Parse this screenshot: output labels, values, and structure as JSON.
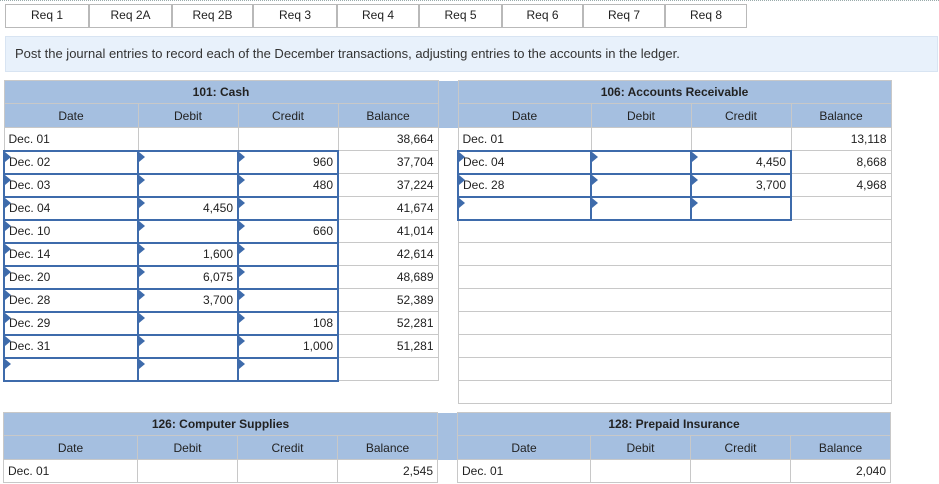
{
  "tabs": [
    "Req 1",
    "Req 2A",
    "Req 2B",
    "Req 3",
    "Req 4",
    "Req 5",
    "Req 6",
    "Req 7",
    "Req 8"
  ],
  "instruction": "Post the journal entries to record each of the December transactions, adjusting entries to the accounts in the ledger.",
  "headers": {
    "date": "Date",
    "debit": "Debit",
    "credit": "Credit",
    "balance": "Balance"
  },
  "cash": {
    "title": "101: Cash",
    "rows": [
      {
        "date": "Dec. 01",
        "debit": "",
        "credit": "",
        "balance": "38,664"
      },
      {
        "date": "Dec. 02",
        "debit": "",
        "credit": "960",
        "balance": "37,704"
      },
      {
        "date": "Dec. 03",
        "debit": "",
        "credit": "480",
        "balance": "37,224"
      },
      {
        "date": "Dec. 04",
        "debit": "4,450",
        "credit": "",
        "balance": "41,674"
      },
      {
        "date": "Dec. 10",
        "debit": "",
        "credit": "660",
        "balance": "41,014"
      },
      {
        "date": "Dec. 14",
        "debit": "1,600",
        "credit": "",
        "balance": "42,614"
      },
      {
        "date": "Dec. 20",
        "debit": "6,075",
        "credit": "",
        "balance": "48,689"
      },
      {
        "date": "Dec. 28",
        "debit": "3,700",
        "credit": "",
        "balance": "52,389"
      },
      {
        "date": "Dec. 29",
        "debit": "",
        "credit": "108",
        "balance": "52,281"
      },
      {
        "date": "Dec. 31",
        "debit": "",
        "credit": "1,000",
        "balance": "51,281"
      },
      {
        "date": "",
        "debit": "",
        "credit": "",
        "balance": ""
      }
    ]
  },
  "ar": {
    "title": "106: Accounts Receivable",
    "rows": [
      {
        "date": "Dec. 01",
        "debit": "",
        "credit": "",
        "balance": "13,118"
      },
      {
        "date": "Dec. 04",
        "debit": "",
        "credit": "4,450",
        "balance": "8,668"
      },
      {
        "date": "Dec. 28",
        "debit": "",
        "credit": "3,700",
        "balance": "4,968"
      },
      {
        "date": "",
        "debit": "",
        "credit": "",
        "balance": ""
      }
    ]
  },
  "supplies": {
    "title": "126: Computer Supplies",
    "rows": [
      {
        "date": "Dec. 01",
        "debit": "",
        "credit": "",
        "balance": "2,545"
      }
    ]
  },
  "insurance": {
    "title": "128: Prepaid Insurance",
    "rows": [
      {
        "date": "Dec. 01",
        "debit": "",
        "credit": "",
        "balance": "2,040"
      }
    ]
  }
}
